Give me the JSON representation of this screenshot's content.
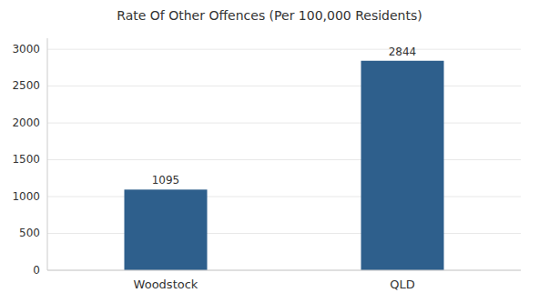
{
  "chart_data": {
    "type": "bar",
    "title": "Rate Of Other Offences (Per 100,000 Residents)",
    "categories": [
      "Woodstock",
      "QLD"
    ],
    "values": [
      1095,
      2844
    ],
    "color": "#2e5f8c",
    "ylim": [
      0,
      3150
    ],
    "yticks": [
      0,
      500,
      1000,
      1500,
      2000,
      2500,
      3000
    ],
    "grid": true,
    "data_labels": true
  }
}
